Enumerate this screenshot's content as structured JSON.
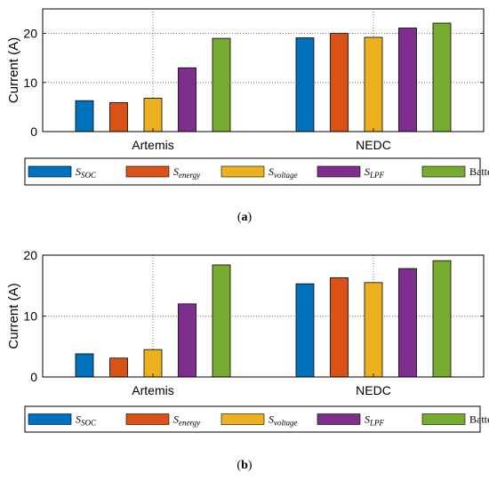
{
  "chart_data": [
    {
      "type": "bar",
      "categories": [
        "Artemis",
        "NEDC"
      ],
      "ylabel": "Current (A)",
      "ylim": [
        0,
        25
      ],
      "yticks": [
        0,
        10,
        20
      ],
      "grid": "dotted at category centers and y=10, 20",
      "legend": "below",
      "series": [
        {
          "name": "S_SOC",
          "label_main": "S",
          "label_sub": "SOC",
          "color": "#0072BD",
          "values": [
            6.3,
            19.1
          ]
        },
        {
          "name": "S_energy",
          "label_main": "S",
          "label_sub": "energy",
          "color": "#D95319",
          "values": [
            5.9,
            20.0
          ]
        },
        {
          "name": "S_voltage",
          "label_main": "S",
          "label_sub": "voltage",
          "color": "#EDB120",
          "values": [
            6.8,
            19.2
          ]
        },
        {
          "name": "S_LPF",
          "label_main": "S",
          "label_sub": "LPF",
          "color": "#7E2F8E",
          "values": [
            13.0,
            21.1
          ]
        },
        {
          "name": "Battery only",
          "label_main": "Battery only",
          "label_sub": "",
          "color": "#77AC30",
          "values": [
            19.0,
            22.1
          ]
        }
      ],
      "caption": "(a)"
    },
    {
      "type": "bar",
      "categories": [
        "Artemis",
        "NEDC"
      ],
      "ylabel": "Current (A)",
      "ylim": [
        0,
        20
      ],
      "yticks": [
        0,
        10,
        20
      ],
      "grid": "dotted at category centers and y=10, 20",
      "legend": "below",
      "series": [
        {
          "name": "S_SOC",
          "label_main": "S",
          "label_sub": "SOC",
          "color": "#0072BD",
          "values": [
            3.8,
            15.3
          ]
        },
        {
          "name": "S_energy",
          "label_main": "S",
          "label_sub": "energy",
          "color": "#D95319",
          "values": [
            3.1,
            16.3
          ]
        },
        {
          "name": "S_voltage",
          "label_main": "S",
          "label_sub": "voltage",
          "color": "#EDB120",
          "values": [
            4.5,
            15.5
          ]
        },
        {
          "name": "S_LPF",
          "label_main": "S",
          "label_sub": "LPF",
          "color": "#7E2F8E",
          "values": [
            12.0,
            17.8
          ]
        },
        {
          "name": "Battery only",
          "label_main": "Battery only",
          "label_sub": "",
          "color": "#77AC30",
          "values": [
            18.4,
            19.1
          ]
        }
      ],
      "caption": "(b)"
    }
  ]
}
